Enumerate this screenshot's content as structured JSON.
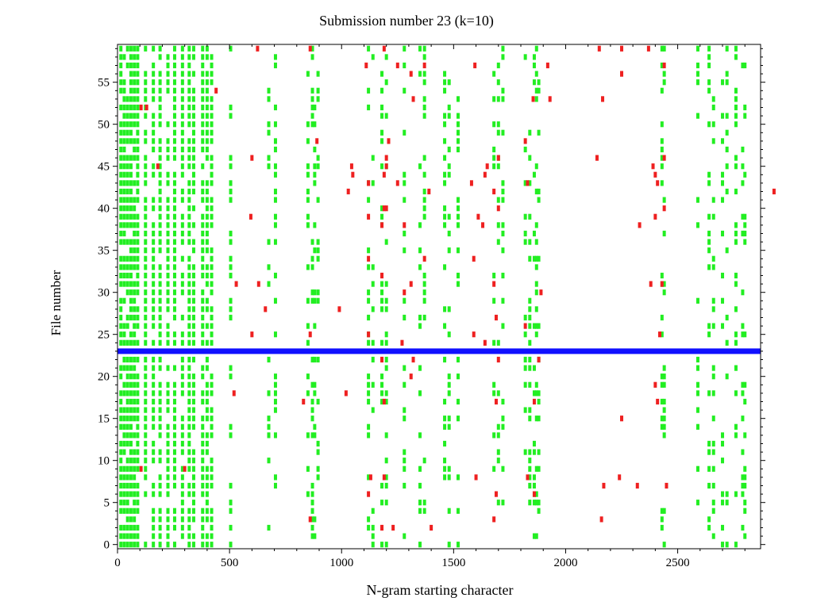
{
  "chart_data": {
    "type": "scatter",
    "title": "Submission number 23 (k=10)",
    "xlabel": "N-gram starting character",
    "ylabel": "File number",
    "xlim": [
      0,
      2870
    ],
    "ylim": [
      -0.5,
      59.5
    ],
    "xticks": [
      0,
      500,
      1000,
      1500,
      2000,
      2500
    ],
    "yticks": [
      0,
      5,
      10,
      15,
      20,
      25,
      30,
      35,
      40,
      45,
      50,
      55
    ],
    "grid": false,
    "legend": "none",
    "highlight": {
      "file_number": 23,
      "color": "#1010ff"
    },
    "colors": {
      "green": "#22ee22",
      "red": "#ee2020",
      "axis": "#000000"
    },
    "series": [
      {
        "color": "green",
        "points_comment_free": true,
        "dense_columns": [
          15,
          30,
          45,
          60,
          75,
          90,
          125,
          160,
          190,
          225,
          255,
          290,
          320,
          340,
          380,
          400,
          420
        ],
        "dense_column_density": 0.85,
        "sparse_columns": [
          505,
          675,
          705,
          850,
          870,
          880,
          895,
          1120,
          1140,
          1180,
          1200,
          1280,
          1350,
          1370,
          1460,
          1480,
          1520,
          1680,
          1700,
          1720,
          1820,
          1840,
          1860,
          1870,
          1880,
          2430,
          2440,
          2590,
          2640,
          2660,
          2700,
          2720,
          2760,
          2790,
          2800
        ],
        "sparse_column_density": 0.35
      },
      {
        "color": "red",
        "points": [
          [
            625,
            59
          ],
          [
            860,
            59
          ],
          [
            1190,
            59
          ],
          [
            2150,
            59
          ],
          [
            2250,
            59
          ],
          [
            2370,
            59
          ],
          [
            1110,
            57
          ],
          [
            1250,
            57
          ],
          [
            1370,
            57
          ],
          [
            1595,
            57
          ],
          [
            1920,
            57
          ],
          [
            2440,
            57
          ],
          [
            1310,
            56
          ],
          [
            2250,
            56
          ],
          [
            440,
            54
          ],
          [
            1320,
            53
          ],
          [
            1855,
            53
          ],
          [
            1930,
            53
          ],
          [
            2165,
            53
          ],
          [
            105,
            52
          ],
          [
            130,
            52
          ],
          [
            890,
            48
          ],
          [
            1210,
            48
          ],
          [
            1820,
            48
          ],
          [
            600,
            46
          ],
          [
            1200,
            46
          ],
          [
            1700,
            46
          ],
          [
            2140,
            46
          ],
          [
            2440,
            46
          ],
          [
            180,
            45
          ],
          [
            1045,
            45
          ],
          [
            1200,
            45
          ],
          [
            1650,
            45
          ],
          [
            2390,
            45
          ],
          [
            1050,
            44
          ],
          [
            1190,
            44
          ],
          [
            1640,
            44
          ],
          [
            2400,
            44
          ],
          [
            1120,
            43
          ],
          [
            1250,
            43
          ],
          [
            1580,
            43
          ],
          [
            1830,
            43
          ],
          [
            2410,
            43
          ],
          [
            1030,
            42
          ],
          [
            1390,
            42
          ],
          [
            1680,
            42
          ],
          [
            2930,
            42
          ],
          [
            1190,
            40
          ],
          [
            1200,
            40
          ],
          [
            1700,
            40
          ],
          [
            2440,
            40
          ],
          [
            595,
            39
          ],
          [
            1120,
            39
          ],
          [
            1610,
            39
          ],
          [
            2400,
            39
          ],
          [
            1180,
            38
          ],
          [
            1280,
            38
          ],
          [
            1630,
            38
          ],
          [
            2330,
            38
          ],
          [
            1120,
            34
          ],
          [
            1370,
            34
          ],
          [
            1590,
            34
          ],
          [
            1180,
            32
          ],
          [
            1310,
            31
          ],
          [
            1680,
            31
          ],
          [
            2430,
            31
          ],
          [
            530,
            31
          ],
          [
            630,
            31
          ],
          [
            2380,
            31
          ],
          [
            1280,
            30
          ],
          [
            1890,
            30
          ],
          [
            660,
            28
          ],
          [
            990,
            28
          ],
          [
            1690,
            27
          ],
          [
            1820,
            26
          ],
          [
            600,
            25
          ],
          [
            860,
            25
          ],
          [
            1120,
            25
          ],
          [
            1590,
            25
          ],
          [
            2420,
            25
          ],
          [
            1270,
            24
          ],
          [
            1640,
            24
          ],
          [
            1180,
            22
          ],
          [
            1320,
            22
          ],
          [
            1700,
            22
          ],
          [
            1880,
            22
          ],
          [
            1310,
            20
          ],
          [
            2400,
            19
          ],
          [
            520,
            18
          ],
          [
            1020,
            18
          ],
          [
            830,
            17
          ],
          [
            1190,
            17
          ],
          [
            1690,
            17
          ],
          [
            1860,
            17
          ],
          [
            2410,
            17
          ],
          [
            2250,
            15
          ],
          [
            105,
            9
          ],
          [
            300,
            9
          ],
          [
            1130,
            8
          ],
          [
            1190,
            8
          ],
          [
            1600,
            8
          ],
          [
            1830,
            8
          ],
          [
            2240,
            8
          ],
          [
            2170,
            7
          ],
          [
            2320,
            7
          ],
          [
            2450,
            7
          ],
          [
            1120,
            6
          ],
          [
            1690,
            6
          ],
          [
            1860,
            6
          ],
          [
            1680,
            3
          ],
          [
            2160,
            3
          ],
          [
            860,
            3
          ],
          [
            1180,
            2
          ],
          [
            1230,
            2
          ],
          [
            1400,
            2
          ]
        ]
      }
    ]
  }
}
